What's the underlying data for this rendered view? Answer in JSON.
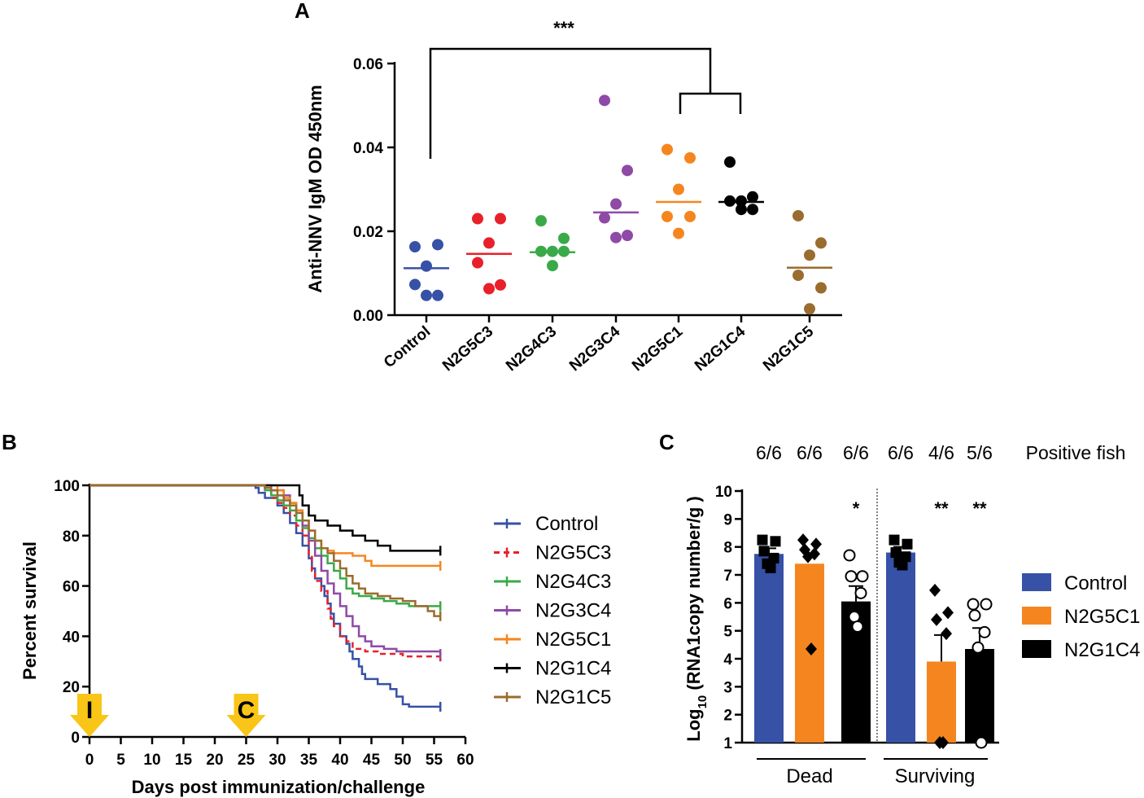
{
  "figure": {
    "colors": {
      "Control": "#3651a6",
      "N2G5C3": "#e8202a",
      "N2G4C3": "#3aaa48",
      "N2G3C4": "#8e4aa6",
      "N2G5C1": "#f5861f",
      "N2G1C4": "#000000",
      "N2G1C5": "#9a6c2e",
      "arrow": "#f9c516"
    }
  },
  "chart_data": [
    {
      "panel": "A",
      "type": "scatter",
      "ylabel": "Anti-NNV IgM OD 450nm",
      "ylim": [
        0,
        0.06
      ],
      "yticks": [
        "0.00",
        "0.02",
        "0.04",
        "0.06"
      ],
      "categories": [
        "Control",
        "N2G5C3",
        "N2G4C3",
        "N2G3C4",
        "N2G5C1",
        "N2G1C4",
        "N2G1C5"
      ],
      "series": [
        {
          "name": "Control",
          "values": [
            0.0163,
            0.0168,
            0.0117,
            0.0073,
            0.0047,
            0.0047
          ],
          "mean": 0.0112
        },
        {
          "name": "N2G5C3",
          "values": [
            0.023,
            0.023,
            0.0172,
            0.0125,
            0.0072,
            0.0063
          ],
          "mean": 0.0146
        },
        {
          "name": "N2G4C3",
          "values": [
            0.0225,
            0.0183,
            0.0152,
            0.0152,
            0.0152,
            0.0118
          ],
          "mean": 0.015
        },
        {
          "name": "N2G3C4",
          "values": [
            0.0512,
            0.0345,
            0.0265,
            0.0232,
            0.019,
            0.0185
          ],
          "mean": 0.0245
        },
        {
          "name": "N2G5C1",
          "values": [
            0.0395,
            0.0375,
            0.03,
            0.0235,
            0.0235,
            0.0195
          ],
          "mean": 0.027
        },
        {
          "name": "N2G1C4",
          "values": [
            0.0365,
            0.0282,
            0.0272,
            0.0272,
            0.0252,
            0.0252
          ],
          "mean": 0.027
        },
        {
          "name": "N2G1C5",
          "values": [
            0.0237,
            0.0172,
            0.0143,
            0.0095,
            0.0065,
            0.0015
          ],
          "mean": 0.0113
        }
      ],
      "annotation": "***"
    },
    {
      "panel": "B",
      "type": "line",
      "xlabel": "Days post immunization/challenge",
      "ylabel": "Percent survival",
      "xlim": [
        0,
        60
      ],
      "ylim": [
        0,
        100
      ],
      "xticks": [
        "0",
        "5",
        "10",
        "15",
        "20",
        "25",
        "30",
        "35",
        "40",
        "45",
        "50",
        "55",
        "60"
      ],
      "yticks": [
        "0",
        "20",
        "40",
        "60",
        "80",
        "100"
      ],
      "markers": [
        {
          "label": "I",
          "day": 0
        },
        {
          "label": "C",
          "day": 25
        }
      ],
      "series": [
        {
          "name": "Control",
          "dash": "solid",
          "points": [
            [
              0,
              100
            ],
            [
              26,
              100
            ],
            [
              26.5,
              99
            ],
            [
              27,
              97
            ],
            [
              28,
              95
            ],
            [
              30,
              92
            ],
            [
              31,
              89
            ],
            [
              32,
              85
            ],
            [
              33,
              81
            ],
            [
              34,
              76
            ],
            [
              35,
              71
            ],
            [
              35.5,
              67
            ],
            [
              36,
              63
            ],
            [
              37,
              60
            ],
            [
              37.5,
              56
            ],
            [
              38,
              53
            ],
            [
              38.5,
              49
            ],
            [
              39,
              45
            ],
            [
              40,
              40
            ],
            [
              41,
              37
            ],
            [
              41.5,
              34
            ],
            [
              42,
              31
            ],
            [
              43,
              28
            ],
            [
              43.5,
              25
            ],
            [
              44,
              23
            ],
            [
              46,
              21
            ],
            [
              48,
              19
            ],
            [
              49,
              16
            ],
            [
              50,
              13
            ],
            [
              51,
              12
            ],
            [
              56,
              12
            ]
          ]
        },
        {
          "name": "N2G5C3",
          "dash": "dashed",
          "points": [
            [
              0,
              100
            ],
            [
              27,
              100
            ],
            [
              28,
              98
            ],
            [
              29,
              95
            ],
            [
              30,
              93
            ],
            [
              31,
              91
            ],
            [
              32,
              88
            ],
            [
              33,
              84
            ],
            [
              34,
              80
            ],
            [
              35,
              72
            ],
            [
              35.5,
              66
            ],
            [
              36,
              62
            ],
            [
              37,
              58
            ],
            [
              38,
              51
            ],
            [
              38.5,
              47
            ],
            [
              39,
              44
            ],
            [
              40,
              40
            ],
            [
              41,
              38
            ],
            [
              42,
              35
            ],
            [
              44,
              34
            ],
            [
              46,
              33
            ],
            [
              50,
              32
            ],
            [
              56,
              32
            ]
          ]
        },
        {
          "name": "N2G4C3",
          "dash": "solid",
          "points": [
            [
              0,
              100
            ],
            [
              27,
              100
            ],
            [
              28,
              98
            ],
            [
              29,
              96
            ],
            [
              30,
              94
            ],
            [
              31,
              92
            ],
            [
              32,
              90
            ],
            [
              33,
              86
            ],
            [
              34,
              83
            ],
            [
              35,
              79
            ],
            [
              36,
              75
            ],
            [
              37,
              72
            ],
            [
              38,
              69
            ],
            [
              39,
              66
            ],
            [
              40,
              63
            ],
            [
              41,
              59
            ],
            [
              42,
              57
            ],
            [
              43,
              56
            ],
            [
              45,
              55
            ],
            [
              47,
              54
            ],
            [
              49,
              53
            ],
            [
              51,
              52
            ],
            [
              56,
              52
            ]
          ]
        },
        {
          "name": "N2G3C4",
          "dash": "solid",
          "points": [
            [
              0,
              100
            ],
            [
              28,
              100
            ],
            [
              29,
              98
            ],
            [
              31,
              96
            ],
            [
              32,
              93
            ],
            [
              33,
              90
            ],
            [
              34,
              84
            ],
            [
              35,
              78
            ],
            [
              36,
              72
            ],
            [
              37,
              66
            ],
            [
              38,
              61
            ],
            [
              39,
              57
            ],
            [
              40,
              52
            ],
            [
              41,
              48
            ],
            [
              42,
              44
            ],
            [
              43,
              40
            ],
            [
              44,
              38
            ],
            [
              45,
              36
            ],
            [
              47,
              35
            ],
            [
              49,
              34
            ],
            [
              51,
              34
            ],
            [
              56,
              33
            ]
          ]
        },
        {
          "name": "N2G5C1",
          "dash": "solid",
          "points": [
            [
              0,
              100
            ],
            [
              29,
              100
            ],
            [
              30,
              98
            ],
            [
              31,
              95
            ],
            [
              32,
              93
            ],
            [
              33,
              90
            ],
            [
              34,
              86
            ],
            [
              35,
              82
            ],
            [
              36,
              78
            ],
            [
              37,
              75
            ],
            [
              38,
              74
            ],
            [
              39,
              73
            ],
            [
              40,
              73
            ],
            [
              42,
              72
            ],
            [
              44,
              70
            ],
            [
              45,
              68
            ],
            [
              48,
              68
            ],
            [
              56,
              68
            ]
          ]
        },
        {
          "name": "N2G1C4",
          "dash": "solid",
          "points": [
            [
              0,
              100
            ],
            [
              33,
              100
            ],
            [
              33.5,
              96
            ],
            [
              34,
              92
            ],
            [
              35,
              88
            ],
            [
              36,
              86
            ],
            [
              38,
              84
            ],
            [
              40,
              82
            ],
            [
              42,
              80
            ],
            [
              44,
              78
            ],
            [
              46,
              76
            ],
            [
              48,
              74
            ],
            [
              56,
              74
            ]
          ]
        },
        {
          "name": "N2G1C5",
          "dash": "solid",
          "points": [
            [
              0,
              100
            ],
            [
              27,
              100
            ],
            [
              28,
              99
            ],
            [
              29,
              98
            ],
            [
              30,
              96
            ],
            [
              31,
              94
            ],
            [
              32,
              92
            ],
            [
              33,
              89
            ],
            [
              34,
              86
            ],
            [
              35,
              82
            ],
            [
              36,
              78
            ],
            [
              37,
              75
            ],
            [
              38,
              73
            ],
            [
              39,
              70
            ],
            [
              40,
              67
            ],
            [
              41,
              64
            ],
            [
              42,
              61
            ],
            [
              43,
              59
            ],
            [
              44,
              57
            ],
            [
              46,
              56
            ],
            [
              48,
              55
            ],
            [
              50,
              54
            ],
            [
              52,
              52
            ],
            [
              54,
              50
            ],
            [
              55,
              48
            ],
            [
              56,
              48
            ]
          ]
        }
      ]
    },
    {
      "panel": "C",
      "type": "bar",
      "ylabel_main": "Log",
      "ylabel_sub": "10",
      "ylabel_rest": " (RNA1copy number/g )",
      "ylim": [
        1,
        10
      ],
      "yticks": [
        "1",
        "2",
        "3",
        "4",
        "5",
        "6",
        "7",
        "8",
        "9",
        "10"
      ],
      "groups": [
        "Dead",
        "Surviving"
      ],
      "positive_label": "Positive fish",
      "legend": [
        "Control",
        "N2G5C1",
        "N2G1C4"
      ],
      "bars": [
        {
          "group": "Dead",
          "series": "Control",
          "value": 7.75,
          "error": 0.2,
          "positive": "6/6",
          "sig": "",
          "marker": "square",
          "points": [
            8.25,
            8.2,
            7.85,
            7.6,
            7.4,
            7.25
          ]
        },
        {
          "group": "Dead",
          "series": "N2G5C1",
          "value": 7.4,
          "error": 0,
          "positive": "6/6",
          "sig": "",
          "marker": "diamond",
          "points": [
            8.25,
            8.1,
            7.9,
            7.75,
            7.65,
            4.35
          ]
        },
        {
          "group": "Dead",
          "series": "N2G1C4",
          "value": 6.05,
          "error": 0.55,
          "positive": "6/6",
          "sig": "*",
          "marker": "circle",
          "points": [
            7.7,
            6.95,
            6.95,
            6.35,
            5.5,
            5.15
          ]
        },
        {
          "group": "Surviving",
          "series": "Control",
          "value": 7.8,
          "error": 0.2,
          "positive": "6/6",
          "sig": "",
          "marker": "square",
          "points": [
            8.25,
            8.1,
            7.8,
            7.65,
            7.45,
            7.35
          ]
        },
        {
          "group": "Surviving",
          "series": "N2G5C1",
          "value": 3.9,
          "error": 0.95,
          "positive": "4/6",
          "sig": "**",
          "marker": "diamond",
          "points": [
            6.45,
            5.65,
            5.4,
            4.9,
            1.0,
            1.0
          ]
        },
        {
          "group": "Surviving",
          "series": "N2G1C4",
          "value": 4.35,
          "error": 0.75,
          "positive": "5/6",
          "sig": "**",
          "marker": "circle",
          "points": [
            5.95,
            5.95,
            5.55,
            4.95,
            4.4,
            1.0
          ]
        }
      ]
    }
  ]
}
